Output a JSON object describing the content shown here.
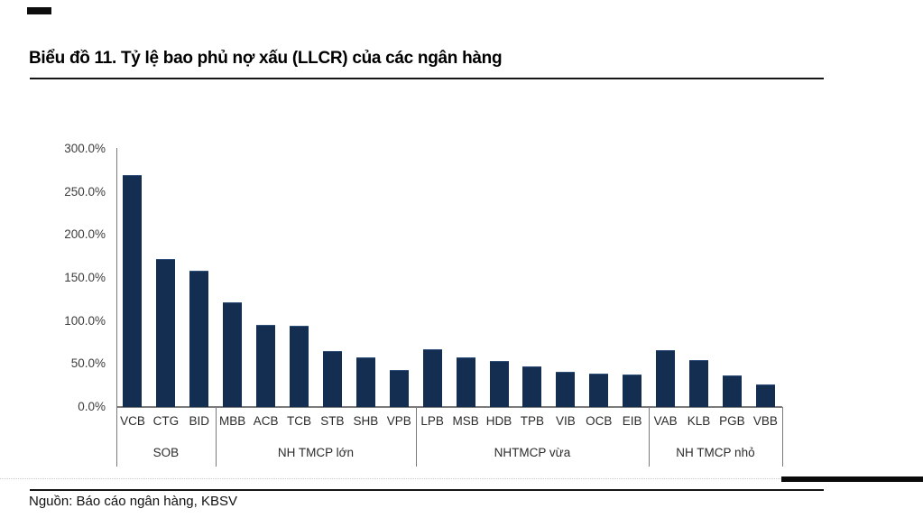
{
  "header": {
    "title": "Biểu đồ 11. Tỷ lệ bao phủ nợ xấu (LLCR) của các ngân hàng"
  },
  "footer": {
    "source": "Nguồn: Báo cáo ngân hàng, KBSV"
  },
  "colors": {
    "bar": "#142e52",
    "bar_top_edge": "#31507b",
    "axis": "#7a7a7a",
    "rule": "#151515",
    "label_text": "#2b2b2b",
    "tick_text": "#3d3d3d"
  },
  "chart_data": {
    "type": "bar",
    "title": "Biểu đồ 11. Tỷ lệ bao phủ nợ xấu (LLCR) của các ngân hàng",
    "xlabel": "",
    "ylabel": "",
    "ylim": [
      0,
      300
    ],
    "unit": "%",
    "grid": false,
    "legend": "none",
    "yticks": [
      "300.0%",
      "250.0%",
      "200.0%",
      "150.0%",
      "100.0%",
      "50.0%",
      "0.0%"
    ],
    "categories": [
      "VCB",
      "CTG",
      "BID",
      "MBB",
      "ACB",
      "TCB",
      "STB",
      "SHB",
      "VPB",
      "LPB",
      "MSB",
      "HDB",
      "TPB",
      "VIB",
      "OCB",
      "EIB",
      "VAB",
      "KLB",
      "PGB",
      "VBB"
    ],
    "values": [
      270,
      172,
      158,
      122,
      95,
      94,
      65,
      58,
      43,
      67,
      58,
      54,
      47,
      41,
      39,
      38,
      66,
      55,
      37,
      26
    ],
    "groups": [
      {
        "label": "SOB",
        "size": 3
      },
      {
        "label": "NH TMCP lớn",
        "size": 6
      },
      {
        "label": "NHTMCP vừa",
        "size": 7
      },
      {
        "label": "NH TMCP nhỏ",
        "size": 4
      }
    ]
  }
}
